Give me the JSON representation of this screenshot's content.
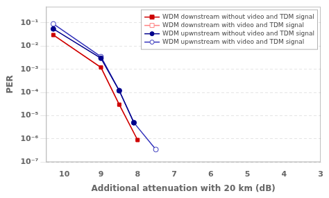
{
  "chart_data": {
    "type": "line",
    "x_label": "Additional attenuation with 20 km (dB)",
    "y_label": "PER",
    "log": "y",
    "grid": "y",
    "legend": "upper right",
    "xlim": [
      10.5,
      3
    ],
    "ylim": [
      1e-07,
      0.5
    ],
    "xticks": [
      10,
      9,
      8,
      7,
      6,
      5,
      4,
      3
    ],
    "yticks": [
      {
        "value": 1e-07,
        "label": "10⁻⁷"
      },
      {
        "value": 1e-06,
        "label": "10⁻⁶"
      },
      {
        "value": 1e-05,
        "label": "10⁻⁵"
      },
      {
        "value": 0.0001,
        "label": "10⁻⁴"
      },
      {
        "value": 0.001,
        "label": "10⁻³"
      },
      {
        "value": 0.01,
        "label": "10⁻²"
      },
      {
        "value": 0.1,
        "label": "10⁻¹"
      }
    ],
    "series": [
      {
        "name": "WDM downstream without video and TDM signal",
        "color": "#cc0000",
        "marker": "square",
        "x": [
          10.3,
          9.0,
          8.5,
          8.0
        ],
        "values": [
          0.03,
          0.0012,
          3e-05,
          9e-07
        ]
      },
      {
        "name": "WDM downstream with video and TDM signal",
        "color": "#ff8080",
        "marker": "square-open",
        "x": [
          10.3,
          9.0,
          8.5,
          8.0
        ],
        "values": [
          0.03,
          0.0012,
          3e-05,
          9e-07
        ]
      },
      {
        "name": "WDM upwnstream without video and TDM signal",
        "color": "#00008B",
        "marker": "circle",
        "x": [
          10.3,
          9.0,
          8.5,
          8.1
        ],
        "values": [
          0.055,
          0.003,
          0.00012,
          5e-06
        ]
      },
      {
        "name": "WDM upwnstream with video and TDM signal",
        "color": "#3333bb",
        "marker": "circle-open",
        "x": [
          10.3,
          9.0,
          8.5,
          8.1,
          7.5
        ],
        "values": [
          0.09,
          0.0035,
          0.00012,
          5e-06,
          3.5e-07
        ]
      }
    ]
  }
}
